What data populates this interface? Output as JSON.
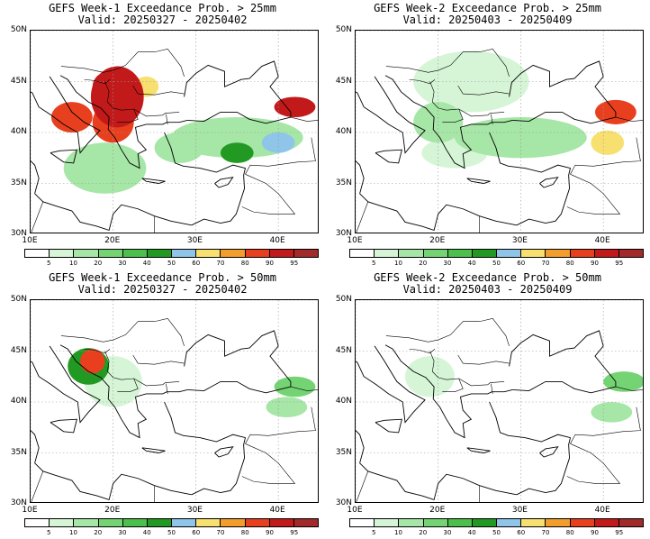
{
  "panels": [
    {
      "title": "GEFS Week-1 Exceedance Prob. > 25mm",
      "valid": "Valid: 20250327 - 20250402",
      "blobs": [
        {
          "lon": 20.5,
          "lat": 43.5,
          "rx": 3.2,
          "ry": 3.0,
          "level": 10
        },
        {
          "lon": 20.0,
          "lat": 41.0,
          "rx": 2.5,
          "ry": 2.0,
          "level": 9
        },
        {
          "lon": 19.5,
          "lat": 44.5,
          "rx": 2.0,
          "ry": 1.5,
          "level": 10
        },
        {
          "lon": 15.0,
          "lat": 41.5,
          "rx": 2.5,
          "ry": 1.5,
          "level": 9
        },
        {
          "lon": 24.0,
          "lat": 44.5,
          "rx": 1.5,
          "ry": 1.0,
          "level": 7
        },
        {
          "lon": 42.0,
          "lat": 42.5,
          "rx": 2.5,
          "ry": 1.0,
          "level": 10
        },
        {
          "lon": 40.0,
          "lat": 39.0,
          "rx": 2.0,
          "ry": 1.0,
          "level": 6
        },
        {
          "lon": 35.0,
          "lat": 38.0,
          "rx": 2.0,
          "ry": 1.0,
          "level": 5
        },
        {
          "lon": 19.0,
          "lat": 36.5,
          "rx": 5.0,
          "ry": 2.5,
          "level": 2
        },
        {
          "lon": 28.0,
          "lat": 38.5,
          "rx": 3.0,
          "ry": 1.5,
          "level": 2
        },
        {
          "lon": 35.0,
          "lat": 39.5,
          "rx": 8.0,
          "ry": 2.0,
          "level": 2
        }
      ]
    },
    {
      "title": "GEFS Week-2 Exceedance Prob. > 25mm",
      "valid": "Valid: 20250403 - 20250409",
      "blobs": [
        {
          "lon": 41.5,
          "lat": 42.0,
          "rx": 2.5,
          "ry": 1.2,
          "level": 9
        },
        {
          "lon": 40.5,
          "lat": 39.0,
          "rx": 2.0,
          "ry": 1.2,
          "level": 7
        },
        {
          "lon": 30.0,
          "lat": 39.5,
          "rx": 8.0,
          "ry": 2.0,
          "level": 2
        },
        {
          "lon": 24.0,
          "lat": 45.0,
          "rx": 7.0,
          "ry": 3.0,
          "level": 1
        },
        {
          "lon": 20.0,
          "lat": 41.0,
          "rx": 3.0,
          "ry": 2.0,
          "level": 2
        },
        {
          "lon": 22.0,
          "lat": 38.0,
          "rx": 4.0,
          "ry": 1.5,
          "level": 1
        }
      ]
    },
    {
      "title": "GEFS Week-1 Exceedance Prob. > 50mm",
      "valid": "Valid: 20250327 - 20250402",
      "blobs": [
        {
          "lon": 17.5,
          "lat": 44.0,
          "rx": 1.5,
          "ry": 1.2,
          "level": 9
        },
        {
          "lon": 17.0,
          "lat": 43.5,
          "rx": 2.5,
          "ry": 1.8,
          "level": 5
        },
        {
          "lon": 42.0,
          "lat": 41.5,
          "rx": 2.5,
          "ry": 1.0,
          "level": 3
        },
        {
          "lon": 41.0,
          "lat": 39.5,
          "rx": 2.5,
          "ry": 1.0,
          "level": 2
        },
        {
          "lon": 20.0,
          "lat": 42.0,
          "rx": 3.5,
          "ry": 2.5,
          "level": 1
        }
      ]
    },
    {
      "title": "GEFS Week-2 Exceedance Prob. > 50mm",
      "valid": "Valid: 20250403 - 20250409",
      "blobs": [
        {
          "lon": 42.5,
          "lat": 42.0,
          "rx": 2.5,
          "ry": 1.0,
          "level": 3
        },
        {
          "lon": 41.0,
          "lat": 39.0,
          "rx": 2.5,
          "ry": 1.0,
          "level": 2
        },
        {
          "lon": 19.0,
          "lat": 42.5,
          "rx": 3.0,
          "ry": 2.0,
          "level": 1
        }
      ]
    }
  ],
  "lat_labels": [
    "50N",
    "45N",
    "40N",
    "35N",
    "30N"
  ],
  "lat_values": [
    50,
    45,
    40,
    35,
    30
  ],
  "lon_labels": [
    "10E",
    "20E",
    "30E",
    "40E"
  ],
  "lon_values": [
    10,
    20,
    30,
    40
  ],
  "extent": {
    "lon_min": 10,
    "lon_max": 45,
    "lat_min": 30,
    "lat_max": 50
  },
  "colorbar": {
    "labels": [
      "5",
      "10",
      "20",
      "30",
      "40",
      "50",
      "60",
      "70",
      "80",
      "90",
      "95"
    ],
    "colors": [
      "#ffffff",
      "#d6f5d6",
      "#a6e6a6",
      "#74d474",
      "#4cbf4c",
      "#229922",
      "#8ec5e8",
      "#f8e070",
      "#f29d2c",
      "#e8401e",
      "#c21a1a",
      "#a32a2a"
    ]
  }
}
